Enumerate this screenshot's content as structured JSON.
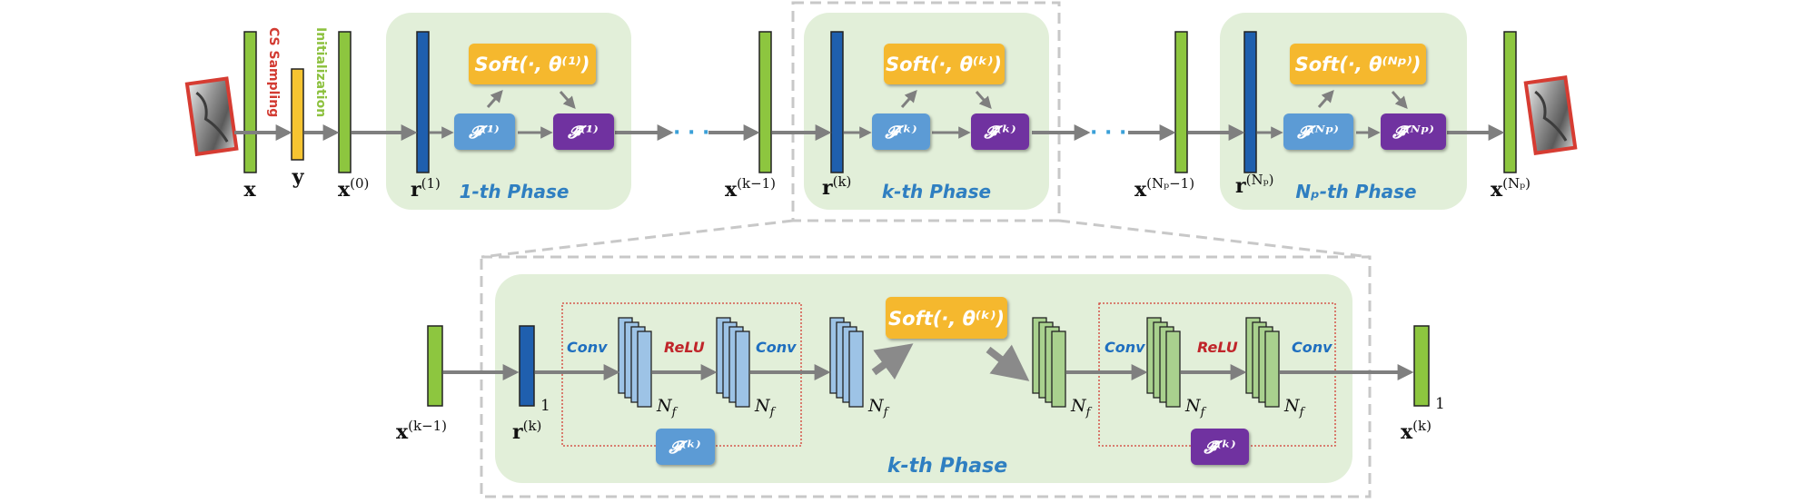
{
  "top": {
    "side_labels": {
      "sampling": "CS Sampling",
      "init": "Initialization"
    },
    "vectors": {
      "x": "x",
      "y": "y",
      "x0": "x",
      "x0_sup": "(0)",
      "r1": "r",
      "r1_sup": "(1)",
      "xk1": "x",
      "xk1_sup": "(k−1)",
      "rk": "r",
      "rk_sup": "(k)",
      "xNp1": "x",
      "xNp1_sup": "(Nₚ−1)",
      "rNp": "r",
      "rNp_sup": "(Nₚ)",
      "xNp": "x",
      "xNp_sup": "(Nₚ)"
    },
    "phases": [
      {
        "soft": "Soft(·, θ⁽¹⁾)",
        "f": "𝓕⁽¹⁾",
        "ft": "𝓕̃⁽¹⁾",
        "title": "1-th Phase"
      },
      {
        "soft": "Soft(·, θ⁽ᵏ⁾)",
        "f": "𝓕⁽ᵏ⁾",
        "ft": "𝓕̃⁽ᵏ⁾",
        "title": "k-th Phase"
      },
      {
        "soft": "Soft(·, θ⁽ᴺᵖ⁾)",
        "f": "𝓕⁽ᴺᵖ⁾",
        "ft": "𝓕̃⁽ᴺᵖ⁾",
        "title": "Nₚ-th Phase"
      }
    ],
    "dots": "· · ·"
  },
  "detail": {
    "xin": "x",
    "xin_sup": "(k−1)",
    "r": "r",
    "r_sup": "(k)",
    "one_r": "1",
    "xout": "x",
    "xout_sup": "(k)",
    "one_x": "1",
    "conv": "Conv",
    "relu": "ReLU",
    "nf": "N",
    "nf_sub": "f",
    "soft": "Soft(·, θ⁽ᵏ⁾)",
    "f_label": "𝓕⁽ᵏ⁾",
    "ft_label": "𝓕̃⁽ᵏ⁾",
    "title": "k-th Phase"
  },
  "colors": {
    "phase_bg": "#e2efd9",
    "green_bar": "#8dc63f",
    "blue_bar": "#1f5fae",
    "yellow_bar": "#f6c431",
    "soft_box": "#f5b82e",
    "f_box": "#5b9bd5",
    "ft_box": "#7030a0",
    "arrow": "#808080"
  }
}
